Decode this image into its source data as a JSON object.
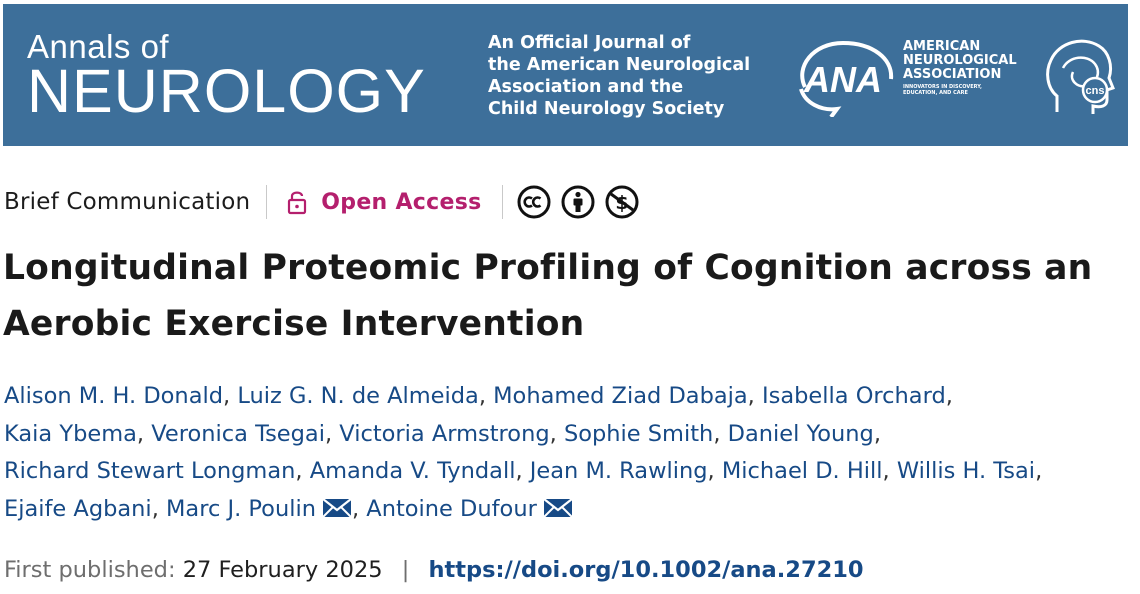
{
  "banner": {
    "journal_line1": "Annals of",
    "journal_line2": "NEUROLOGY",
    "official_lines": [
      "An Official Journal of",
      "the American Neurological",
      "Association and the",
      "Child Neurology Society"
    ],
    "ana_abbrev": "ANA",
    "ana_name_lines": [
      "AMERICAN",
      "NEUROLOGICAL",
      "ASSOCIATION"
    ],
    "ana_tagline": "INNOVATORS IN DISCOVERY, EDUCATION, AND CARE",
    "cns_abbrev": "cns",
    "background_color": "#3d6f9a"
  },
  "meta": {
    "article_type": "Brief Communication",
    "open_access_label": "Open Access",
    "open_access_icon": "lock-open-icon",
    "license_icons": [
      "cc-icon",
      "by-icon",
      "nc-icon"
    ]
  },
  "article": {
    "title_line1": "Longitudinal Proteomic Profiling of Cognition across an",
    "title_line2": "Aerobic Exercise Intervention"
  },
  "authors": [
    {
      "name": "Alison M. H. Donald"
    },
    {
      "name": "Luiz G. N. de Almeida"
    },
    {
      "name": "Mohamed Ziad Dabaja"
    },
    {
      "name": "Isabella Orchard"
    },
    {
      "name": "Kaia Ybema"
    },
    {
      "name": "Veronica Tsegai"
    },
    {
      "name": "Victoria Armstrong"
    },
    {
      "name": "Sophie Smith"
    },
    {
      "name": "Daniel Young"
    },
    {
      "name": "Richard Stewart Longman"
    },
    {
      "name": "Amanda V. Tyndall"
    },
    {
      "name": "Jean M. Rawling"
    },
    {
      "name": "Michael D. Hill"
    },
    {
      "name": "Willis H. Tsai"
    },
    {
      "name": "Ejaife Agbani"
    },
    {
      "name": "Marc J. Poulin",
      "corresponding": true
    },
    {
      "name": "Antoine Dufour",
      "corresponding": true
    }
  ],
  "published": {
    "label": "First published:",
    "date": "27 February 2025",
    "separator": "|",
    "doi": "https://doi.org/10.1002/ana.27210"
  },
  "colors": {
    "accent_magenta": "#b41f6d",
    "link_blue": "#174a86"
  }
}
